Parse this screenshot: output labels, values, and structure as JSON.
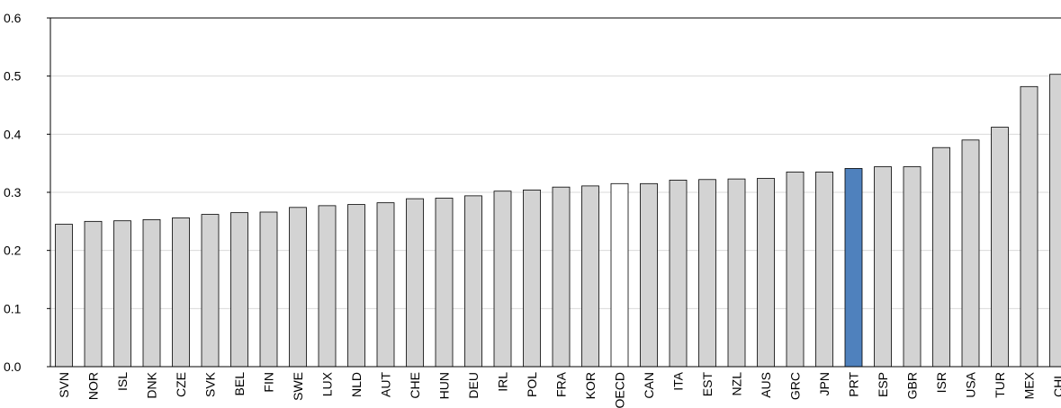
{
  "chart_data": {
    "type": "bar",
    "title": "",
    "xlabel": "",
    "ylabel": "",
    "ylim": [
      0,
      0.6
    ],
    "yticks": [
      "0.0",
      "0.1",
      "0.2",
      "0.3",
      "0.4",
      "0.5",
      "0.6"
    ],
    "grid": true,
    "categories": [
      "SVN",
      "NOR",
      "ISL",
      "DNK",
      "CZE",
      "SVK",
      "BEL",
      "FIN",
      "SWE",
      "LUX",
      "NLD",
      "AUT",
      "CHE",
      "HUN",
      "DEU",
      "IRL",
      "POL",
      "FRA",
      "KOR",
      "OECD",
      "CAN",
      "ITA",
      "EST",
      "NZL",
      "AUS",
      "GRC",
      "JPN",
      "PRT",
      "ESP",
      "GBR",
      "ISR",
      "USA",
      "TUR",
      "MEX",
      "CHL"
    ],
    "values": [
      0.245,
      0.25,
      0.251,
      0.253,
      0.256,
      0.262,
      0.265,
      0.266,
      0.274,
      0.277,
      0.279,
      0.282,
      0.289,
      0.29,
      0.294,
      0.302,
      0.304,
      0.309,
      0.311,
      0.315,
      0.315,
      0.321,
      0.322,
      0.323,
      0.324,
      0.335,
      0.335,
      0.341,
      0.344,
      0.344,
      0.377,
      0.39,
      0.412,
      0.482,
      0.503
    ],
    "colors": {
      "default": "#d3d3d3",
      "oecd": "#ffffff",
      "highlight": "#4f81bd",
      "outline": "#000000",
      "grid": "#d9d9d9"
    },
    "highlight_category": "PRT",
    "average_category": "OECD"
  }
}
